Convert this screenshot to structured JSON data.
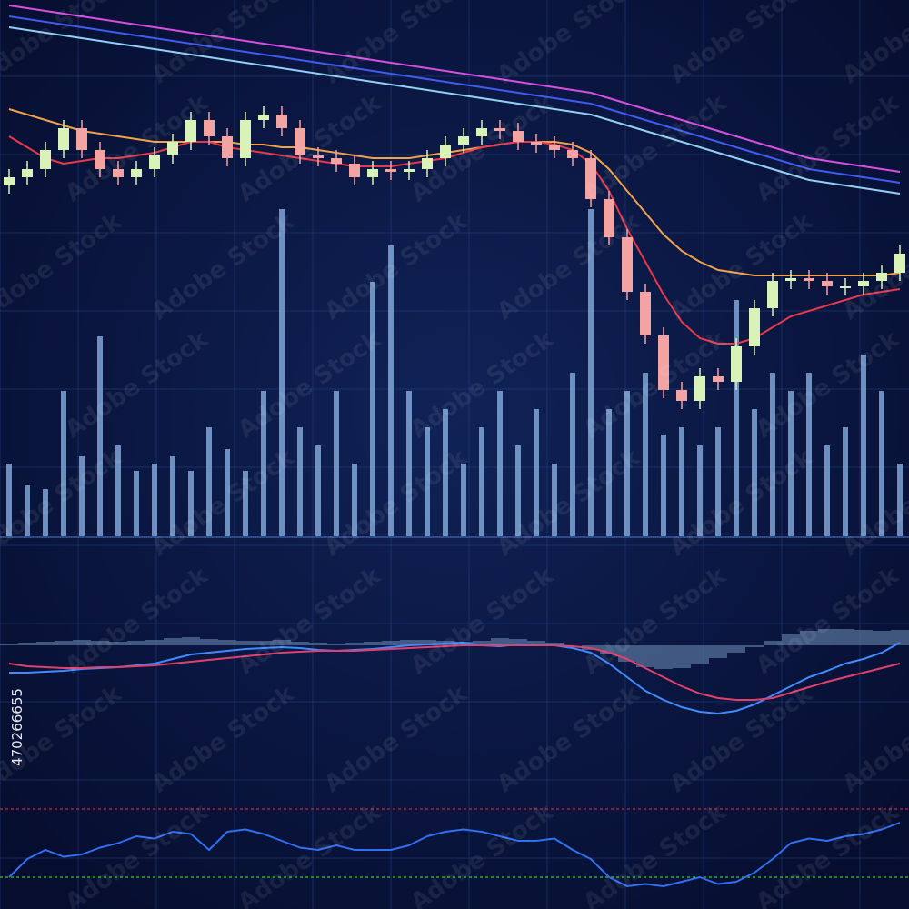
{
  "watermark": {
    "text": "Adobe Stock",
    "id": "470266655"
  },
  "chart_data": [
    {
      "type": "candlestick",
      "grid": true,
      "ylim": [
        0,
        100
      ],
      "up_color": "#d9f2b8",
      "down_color": "#f4a3a3",
      "open": [
        66,
        67.5,
        69,
        72.5,
        76.5,
        72.5,
        69,
        67.5,
        69,
        71.5,
        74,
        78,
        75,
        71,
        78,
        79,
        76.5,
        71.5,
        71,
        70,
        67.5,
        69,
        68.5,
        69,
        71,
        73.5,
        75,
        76.5,
        76,
        74,
        73.5,
        72.5,
        71,
        63.5,
        56.5,
        46.5,
        38.5,
        28.5,
        26.5,
        31,
        30,
        36.5,
        43.5,
        48.5,
        49,
        48.5,
        47.5,
        47.5,
        48.5,
        50
      ],
      "high": [
        69,
        70.5,
        74,
        78,
        78,
        74,
        70.5,
        70.5,
        73,
        75.5,
        79.5,
        79.5,
        76.5,
        79.5,
        80.5,
        80.5,
        78,
        73,
        72.5,
        71.5,
        70.5,
        70.5,
        70.5,
        72.5,
        75,
        76.5,
        78,
        78,
        77.5,
        75.5,
        75,
        74,
        72.5,
        65,
        58,
        48,
        40,
        30,
        32.5,
        32.5,
        38,
        45,
        50,
        50.5,
        50.5,
        50,
        49,
        50,
        51.5,
        55
      ],
      "low": [
        64.5,
        66,
        67.5,
        71,
        71,
        67.5,
        66,
        66,
        67.5,
        70,
        72.5,
        73.5,
        69.5,
        69.5,
        76.5,
        75,
        70,
        69.5,
        68.5,
        66,
        66,
        67,
        67,
        67.5,
        69.5,
        72,
        73.5,
        74.5,
        72.5,
        72,
        71,
        69.5,
        62,
        55,
        45,
        37,
        27,
        25,
        25,
        28.5,
        28.5,
        35,
        42,
        47,
        47,
        46,
        46,
        46,
        47,
        48.5
      ],
      "close": [
        67.5,
        69,
        72.5,
        76.5,
        72.5,
        69,
        67.5,
        69,
        71.5,
        74,
        78,
        75,
        71,
        78,
        79,
        76.5,
        71.5,
        71,
        70,
        67.5,
        69,
        68.5,
        69,
        71,
        73.5,
        75,
        76.5,
        76,
        74,
        73.5,
        72.5,
        71,
        63.5,
        56.5,
        46.5,
        38.5,
        28.5,
        26.5,
        31,
        30,
        36.5,
        43.5,
        48.5,
        49,
        48.5,
        47.5,
        47.5,
        48.5,
        50,
        53.5
      ],
      "series": [
        {
          "color": "#d64fe0",
          "values": [
            99,
            98.5,
            98,
            97.5,
            97,
            96.5,
            96,
            95.5,
            95,
            94.5,
            94,
            93.5,
            93,
            92.5,
            92,
            91.5,
            91,
            90.5,
            90,
            89.5,
            89,
            88.5,
            88,
            87.5,
            87,
            86.5,
            86,
            85.5,
            85,
            84.5,
            84,
            83.5,
            83,
            82,
            81,
            80,
            79,
            78,
            77,
            76,
            75,
            74,
            73,
            72,
            71,
            70.5,
            70,
            69.5,
            69,
            68.5
          ]
        },
        {
          "color": "#3f5bf0",
          "values": [
            97,
            96.5,
            96,
            95.5,
            95,
            94.5,
            94,
            93.5,
            93,
            92.5,
            92,
            91.5,
            91,
            90.5,
            90,
            89.5,
            89,
            88.5,
            88,
            87.5,
            87,
            86.5,
            86,
            85.5,
            85,
            84.5,
            84,
            83.5,
            83,
            82.5,
            82,
            81.5,
            81,
            80,
            79,
            78,
            77,
            76,
            75,
            74,
            73,
            72,
            71,
            70,
            69,
            68.5,
            68,
            67.5,
            67,
            66.5
          ]
        },
        {
          "color": "#8fd0f5",
          "values": [
            95,
            94.5,
            94,
            93.5,
            93,
            92.5,
            92,
            91.5,
            91,
            90.5,
            90,
            89.5,
            89,
            88.5,
            88,
            87.5,
            87,
            86.5,
            86,
            85.5,
            85,
            84.5,
            84,
            83.5,
            83,
            82.5,
            82,
            81.5,
            81,
            80.5,
            80,
            79.5,
            79,
            78,
            77,
            76,
            75,
            74,
            73,
            72,
            71,
            70,
            69,
            68,
            67,
            66.5,
            66,
            65.5,
            65,
            64.5
          ]
        },
        {
          "color": "#f0a24a",
          "values": [
            80,
            79,
            78,
            77,
            76,
            75.5,
            75,
            74.5,
            74,
            74,
            74,
            74,
            74,
            73.5,
            73.5,
            73,
            73,
            72.5,
            72,
            71.5,
            71,
            71,
            71,
            71.5,
            72,
            72.5,
            73,
            73.5,
            74,
            74,
            74,
            73.5,
            72,
            69,
            65,
            61,
            57,
            54,
            52,
            50.5,
            50,
            49.5,
            49.5,
            49.5,
            49.5,
            49.5,
            49.5,
            49.5,
            49.5,
            50
          ]
        },
        {
          "color": "#e8384a",
          "values": [
            75,
            73,
            71,
            70,
            70.5,
            71,
            71,
            71.5,
            72,
            73,
            74,
            74,
            73,
            72.5,
            72,
            71.5,
            71,
            70.5,
            70,
            69.5,
            69.5,
            69.5,
            70,
            70.5,
            71,
            72,
            73,
            73.5,
            74,
            74,
            73.5,
            72.5,
            70,
            65,
            58,
            52,
            46,
            41,
            38,
            37,
            37,
            38,
            40,
            42,
            43,
            44,
            45,
            46,
            46.5,
            47
          ]
        }
      ]
    },
    {
      "type": "bar",
      "grid": true,
      "ylim": [
        0,
        100
      ],
      "color": "#8fb8e8",
      "values": [
        20,
        14,
        13,
        40,
        22,
        55,
        25,
        18,
        20,
        22,
        18,
        30,
        24,
        18,
        40,
        90,
        30,
        25,
        40,
        20,
        70,
        80,
        40,
        30,
        35,
        20,
        30,
        40,
        25,
        35,
        20,
        45,
        90,
        35,
        40,
        45,
        28,
        30,
        25,
        30,
        65,
        35,
        45,
        40,
        45,
        25,
        30,
        50,
        40,
        20
      ]
    },
    {
      "type": "line",
      "grid": true,
      "ylim": [
        -8,
        2
      ],
      "histogram": {
        "color": "#6f8fb8",
        "values": [
          0.2,
          0.3,
          0.4,
          0.5,
          0.6,
          0.5,
          0.4,
          0.5,
          0.6,
          0.8,
          0.9,
          0.7,
          0.6,
          0.5,
          0.5,
          0.6,
          0.4,
          0.3,
          0.2,
          0.3,
          0.4,
          0.5,
          0.6,
          0.6,
          0.5,
          0.4,
          0.5,
          0.8,
          0.7,
          0.5,
          0.3,
          0,
          -0.5,
          -1,
          -1.8,
          -2.4,
          -2.6,
          -2.5,
          -2,
          -1.4,
          -0.8,
          -0.2,
          0.5,
          1.2,
          1.6,
          1.8,
          1.8,
          1.7,
          1.6,
          1.7
        ]
      },
      "series": [
        {
          "color": "#3f8bff",
          "values": [
            -3,
            -3,
            -2.9,
            -2.8,
            -2.6,
            -2.5,
            -2.4,
            -2.2,
            -2,
            -1.5,
            -1,
            -0.8,
            -0.6,
            -0.4,
            -0.3,
            -0.2,
            -0.3,
            -0.5,
            -0.6,
            -0.5,
            -0.4,
            -0.2,
            0,
            0.1,
            0.2,
            0.3,
            0,
            -0.1,
            0.1,
            0,
            0,
            -0.3,
            -0.8,
            -2,
            -3.5,
            -5,
            -6,
            -6.8,
            -7.3,
            -7.5,
            -7.2,
            -6.5,
            -5.5,
            -4.5,
            -3.5,
            -2.8,
            -2,
            -1.5,
            -0.8,
            0.3
          ]
        },
        {
          "color": "#e0406a",
          "values": [
            -2,
            -2.3,
            -2.4,
            -2.5,
            -2.5,
            -2.4,
            -2.4,
            -2.3,
            -2.2,
            -2,
            -1.8,
            -1.6,
            -1.4,
            -1.2,
            -1,
            -0.8,
            -0.7,
            -0.6,
            -0.6,
            -0.6,
            -0.5,
            -0.4,
            -0.3,
            -0.2,
            -0.1,
            0,
            0,
            0,
            0,
            0,
            0,
            -0.1,
            -0.3,
            -0.8,
            -1.5,
            -2.5,
            -3.5,
            -4.5,
            -5.3,
            -5.8,
            -6,
            -6,
            -5.8,
            -5.2,
            -4.6,
            -4,
            -3.5,
            -3,
            -2.5,
            -2
          ]
        }
      ]
    },
    {
      "type": "line",
      "grid": true,
      "ylim": [
        0,
        100
      ],
      "levels": [
        {
          "value": 80,
          "color": "#b03050"
        },
        {
          "value": 20,
          "color": "#3fc040"
        }
      ],
      "series": [
        {
          "color": "#2f6ff0",
          "values": [
            20,
            36,
            44,
            38,
            40,
            46,
            50,
            56,
            54,
            60,
            58,
            44,
            60,
            62,
            58,
            52,
            46,
            44,
            48,
            44,
            44,
            44,
            48,
            56,
            60,
            62,
            60,
            56,
            52,
            52,
            54,
            44,
            36,
            20,
            12,
            14,
            12,
            16,
            20,
            14,
            16,
            24,
            36,
            50,
            54,
            52,
            56,
            58,
            62,
            68
          ]
        }
      ]
    }
  ]
}
